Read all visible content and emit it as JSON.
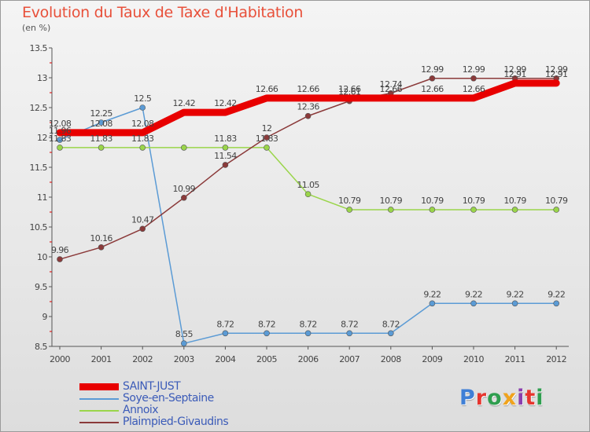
{
  "header": {
    "title": "Evolution du Taux de Taxe d'Habitation",
    "unit": "(en %)"
  },
  "logo": {
    "text": "Proxiti",
    "letter_colors": [
      "#3f7fd6",
      "#e6352e",
      "#2f9e4f",
      "#f0a31c",
      "#8a3fae",
      "#e6352e",
      "#2f9e4f"
    ]
  },
  "colors": {
    "axis": "#555555",
    "grid_tick": "#e00000",
    "label": "#444444"
  },
  "chart_data": {
    "type": "line",
    "x": [
      "2000",
      "2001",
      "2002",
      "2003",
      "2004",
      "2005",
      "2006",
      "2007",
      "2008",
      "2009",
      "2010",
      "2011",
      "2012"
    ],
    "ylim": [
      8.5,
      13.5
    ],
    "yticks": [
      "8.5",
      "9",
      "9.5",
      "10",
      "10.5",
      "11",
      "11.5",
      "12",
      "12.5",
      "13",
      "13.5"
    ],
    "grid": false,
    "legend_position": "bottom-left",
    "series": [
      {
        "name": "SAINT-JUST",
        "color": "#e80000",
        "width": 9,
        "marker": false,
        "values": [
          12.08,
          12.08,
          12.08,
          12.42,
          12.42,
          12.66,
          12.66,
          12.66,
          12.66,
          12.66,
          12.66,
          12.91,
          12.91
        ],
        "labels": [
          "12.08",
          "12.08",
          "12.08",
          "12.42",
          "12.42",
          "12.66",
          "12.66",
          "12.66",
          "12.66",
          "12.66",
          "12.66",
          "12.91",
          "12.91"
        ]
      },
      {
        "name": "Soye-en-Septaine",
        "color": "#5b9bd5",
        "width": 1.5,
        "marker": true,
        "values": [
          11.96,
          12.25,
          12.5,
          8.55,
          8.72,
          8.72,
          8.72,
          8.72,
          8.72,
          9.22,
          9.22,
          9.22,
          9.22
        ],
        "labels": [
          "11.96",
          "12.25",
          "12.5",
          "8.55",
          "8.72",
          "8.72",
          "8.72",
          "8.72",
          "8.72",
          "9.22",
          "9.22",
          "9.22",
          "9.22"
        ]
      },
      {
        "name": "Annoix",
        "color": "#9ad54a",
        "width": 1.5,
        "marker": true,
        "values": [
          11.83,
          11.83,
          11.83,
          11.83,
          11.83,
          11.83,
          11.05,
          10.79,
          10.79,
          10.79,
          10.79,
          10.79,
          10.79
        ],
        "labels": [
          "11.83",
          "11.83",
          "11.83",
          "",
          "11.83",
          "11.83",
          "11.05",
          "10.79",
          "10.79",
          "10.79",
          "10.79",
          "10.79",
          "10.79"
        ]
      },
      {
        "name": "Plaimpied-Givaudins",
        "color": "#8b3a3a",
        "width": 1.5,
        "marker": true,
        "values": [
          9.96,
          10.16,
          10.47,
          10.99,
          11.54,
          12.0,
          12.36,
          12.61,
          12.74,
          12.99,
          12.99,
          12.99,
          12.99
        ],
        "labels": [
          "9.96",
          "10.16",
          "10.47",
          "10.99",
          "11.54",
          "12",
          "12.36",
          "12.61",
          "12.74",
          "12.99",
          "12.99",
          "12.99",
          "12.99"
        ]
      }
    ]
  }
}
